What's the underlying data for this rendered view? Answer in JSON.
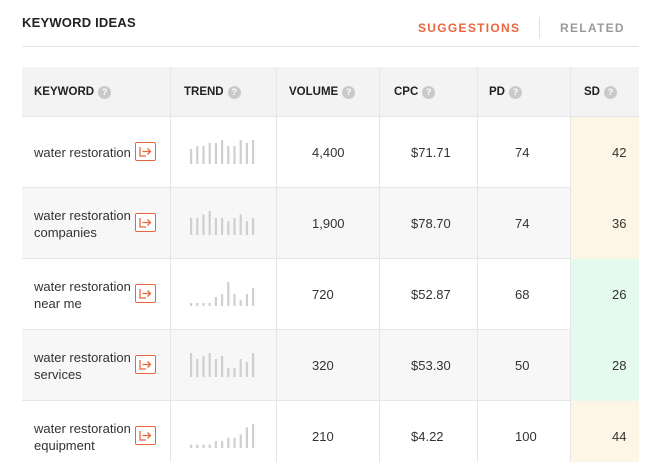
{
  "header": {
    "title": "KEYWORD IDEAS",
    "tabs": {
      "suggestions": "SUGGESTIONS",
      "related": "RELATED"
    }
  },
  "colors": {
    "accent": "#e8663d",
    "sd_medium_bg": "#fdf6e6",
    "sd_low_bg": "#e5faee"
  },
  "table": {
    "columns": {
      "keyword": "KEYWORD",
      "trend": "TREND",
      "volume": "VOLUME",
      "cpc": "CPC",
      "pd": "PD",
      "sd": "SD"
    },
    "help_icon": "?",
    "rows": [
      {
        "keyword": "water restoration",
        "volume": "4,400",
        "cpc": "$71.71",
        "pd": "74",
        "sd": "42",
        "sd_level": "medium",
        "trend": [
          5,
          6,
          6,
          7,
          7,
          8,
          6,
          6,
          8,
          7,
          8
        ]
      },
      {
        "keyword": "water restoration companies",
        "volume": "1,900",
        "cpc": "$78.70",
        "pd": "74",
        "sd": "36",
        "sd_level": "medium",
        "trend": [
          5,
          5,
          6,
          7,
          5,
          5,
          4,
          5,
          6,
          4,
          5
        ]
      },
      {
        "keyword": "water restoration near me",
        "volume": "720",
        "cpc": "$52.87",
        "pd": "68",
        "sd": "26",
        "sd_level": "low",
        "trend": [
          1,
          1,
          1,
          1,
          3,
          4,
          8,
          4,
          2,
          4,
          6
        ]
      },
      {
        "keyword": "water restoration services",
        "volume": "320",
        "cpc": "$53.30",
        "pd": "50",
        "sd": "28",
        "sd_level": "low",
        "trend": [
          8,
          6,
          7,
          8,
          6,
          7,
          3,
          3,
          6,
          5,
          8
        ]
      },
      {
        "keyword": "water restoration equipment",
        "volume": "210",
        "cpc": "$4.22",
        "pd": "100",
        "sd": "44",
        "sd_level": "medium",
        "trend": [
          1,
          1,
          1,
          1,
          2,
          2,
          3,
          3,
          4,
          6,
          7
        ]
      }
    ]
  }
}
